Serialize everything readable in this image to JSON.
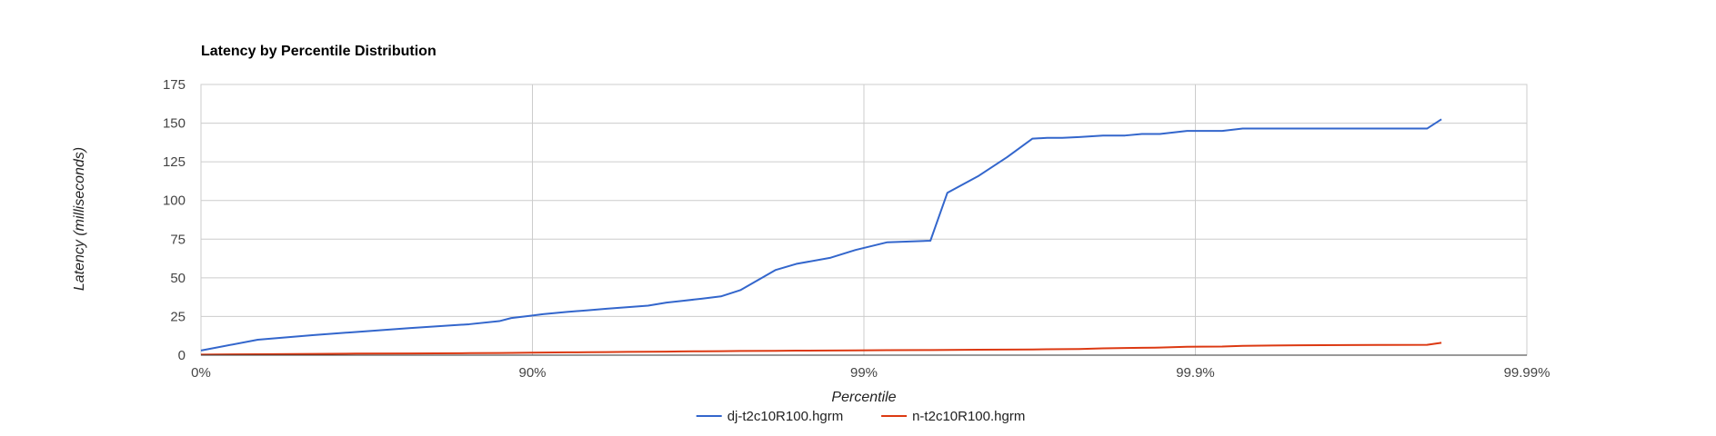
{
  "chart_data": {
    "type": "line",
    "title": "Latency by Percentile Distribution",
    "xlabel": "Percentile",
    "ylabel": "Latency (milliseconds)",
    "x_scale": "log-reciprocal",
    "x_ticks": [
      "0%",
      "90%",
      "99%",
      "99.9%",
      "99.99%"
    ],
    "x_range": [
      "0%",
      "99.99%"
    ],
    "ylim": [
      0,
      175
    ],
    "y_ticks": [
      "0",
      "25",
      "50",
      "75",
      "100",
      "125",
      "150",
      "175"
    ],
    "grid": true,
    "legend_position": "bottom",
    "series": [
      {
        "name": "dj-t2c10R100.hgrm",
        "color": "#3366cc",
        "x": [
          0,
          32.61,
          54.35,
          65.94,
          76.44,
          84.49,
          87.41,
          88.42,
          89.87,
          90.7,
          92.14,
          93.19,
          94.03,
          94.8,
          95.52,
          96.06,
          96.44,
          96.91,
          97.3,
          97.64,
          98.15,
          98.4,
          98.74,
          98.94,
          99.15,
          99.37,
          99.44,
          99.55,
          99.63,
          99.69,
          99.72,
          99.748,
          99.776,
          99.81,
          99.837,
          99.855,
          99.872,
          99.894,
          99.905,
          99.917,
          99.928,
          99.937,
          99.951,
          99.965,
          99.972,
          99.98,
          99.9819
        ],
        "y": [
          3,
          10,
          13,
          15,
          17.5,
          20,
          22,
          24,
          25.5,
          26.5,
          28,
          29,
          30,
          31,
          32,
          34,
          35,
          36.5,
          38,
          42,
          55,
          59,
          63,
          68,
          73,
          74,
          105,
          116,
          128,
          140,
          140.5,
          140.5,
          141,
          142,
          142,
          143,
          143,
          145,
          145,
          145,
          146.5,
          146.5,
          146.5,
          146.5,
          146.5,
          146.5,
          152.5
        ]
      },
      {
        "name": "n-t2c10R100.hgrm",
        "color": "#dc3912",
        "x": [
          0,
          32.61,
          54.35,
          65.94,
          76.44,
          84.49,
          87.41,
          88.42,
          89.87,
          90.7,
          92.14,
          93.19,
          94.03,
          94.8,
          95.52,
          96.06,
          96.44,
          96.91,
          97.3,
          97.64,
          98.15,
          98.4,
          98.74,
          98.94,
          99.15,
          99.37,
          99.44,
          99.55,
          99.63,
          99.69,
          99.72,
          99.748,
          99.776,
          99.81,
          99.837,
          99.855,
          99.872,
          99.894,
          99.905,
          99.917,
          99.928,
          99.937,
          99.951,
          99.965,
          99.972,
          99.98,
          99.9819
        ],
        "y": [
          0.4,
          0.6,
          0.8,
          1.0,
          1.1,
          1.3,
          1.4,
          1.5,
          1.6,
          1.7,
          1.8,
          1.9,
          2.0,
          2.1,
          2.2,
          2.3,
          2.4,
          2.5,
          2.6,
          2.7,
          2.8,
          2.9,
          3.0,
          3.1,
          3.2,
          3.3,
          3.4,
          3.5,
          3.6,
          3.7,
          3.8,
          3.9,
          4.0,
          4.4,
          4.6,
          4.8,
          4.9,
          5.4,
          5.5,
          5.6,
          6.0,
          6.2,
          6.4,
          6.5,
          6.6,
          6.7,
          8.0
        ]
      }
    ]
  }
}
